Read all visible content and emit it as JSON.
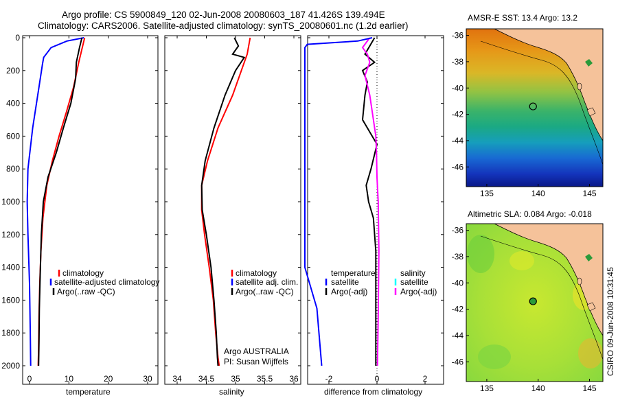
{
  "header": {
    "line1": "Argo profile: CS 5900849_120 02-Jun-2008 20080603_187 41.426S 139.494E",
    "line2": "Climatology: CARS2006. Satellite-adjusted climatology: synTS_20080601.nc (1.2d earlier)"
  },
  "side_stamp": "CSIRO 09-Jun-2008 10:31:45",
  "colors": {
    "climatology": "#ff0000",
    "satellite": "#0000ff",
    "argo": "#000000",
    "salinity_satellite": "#00ffff",
    "salinity_argo_adj": "#ff00ff",
    "land": "#f5c29a"
  },
  "chart_data": [
    {
      "type": "line",
      "xlabel": "temperature",
      "ylabel": "",
      "xlim": [
        -2,
        31
      ],
      "ylim": [
        2050,
        0
      ],
      "xticks": [
        0,
        10,
        20,
        30
      ],
      "yticks": [
        0,
        200,
        400,
        600,
        800,
        1000,
        1200,
        1400,
        1600,
        1800,
        2000
      ],
      "legend": [
        "climatology",
        "satellite-adjusted climatology",
        "Argo(..raw -QC)"
      ],
      "legend_position": "lower-right",
      "series": [
        {
          "name": "climatology",
          "color": "#ff0000",
          "x": [
            14,
            13.5,
            12.5,
            11.2,
            9.4,
            7.5,
            5.8,
            4.4,
            3.4,
            2.9,
            2.6,
            2.4,
            2.3,
            2.2
          ],
          "y": [
            0,
            50,
            150,
            300,
            450,
            600,
            750,
            900,
            1100,
            1300,
            1500,
            1700,
            1900,
            2000
          ]
        },
        {
          "name": "satellite-adjusted climatology",
          "color": "#0000ff",
          "x": [
            13.8,
            9.5,
            5.5,
            3.6,
            3.3,
            2.4,
            0.8,
            -0.4,
            -0.6,
            -0.4,
            0,
            0.2,
            0.3
          ],
          "y": [
            0,
            20,
            60,
            120,
            160,
            300,
            550,
            800,
            1000,
            1200,
            1500,
            1800,
            2000
          ]
        },
        {
          "name": "Argo(..raw -QC)",
          "color": "#000000",
          "x": [
            13.3,
            12.7,
            11.9,
            11.7,
            10.5,
            8.6,
            6.8,
            4.7,
            3.5,
            3.0,
            2.7,
            2.5,
            2.4,
            2.3
          ],
          "y": [
            0,
            60,
            150,
            250,
            400,
            550,
            700,
            850,
            1000,
            1200,
            1450,
            1650,
            1850,
            2000
          ]
        }
      ]
    },
    {
      "type": "line",
      "xlabel": "salinity",
      "ylabel": "",
      "xlim": [
        33.8,
        36.1
      ],
      "ylim": [
        2050,
        0
      ],
      "xticks": [
        34,
        34.5,
        35,
        35.5,
        36
      ],
      "xticklabels": [
        "34",
        "34.5",
        "35",
        "35.5",
        "36"
      ],
      "legend": [
        "climatology",
        "satellite adj. clim.",
        "Argo(..raw -QC)"
      ],
      "legend_position": "lower-right",
      "annotation": [
        "Argo AUSTRALIA",
        "PI: Susan Wijffels"
      ],
      "series": [
        {
          "name": "climatology",
          "color": "#ff0000",
          "x": [
            35.25,
            35.2,
            35.1,
            34.95,
            34.7,
            34.52,
            34.42,
            34.42,
            34.47,
            34.55,
            34.62,
            34.66,
            34.7,
            34.72
          ],
          "y": [
            0,
            100,
            200,
            350,
            550,
            750,
            900,
            1050,
            1200,
            1400,
            1600,
            1800,
            1950,
            2000
          ]
        },
        {
          "name": "Argo(..raw -QC)",
          "color": "#000000",
          "x": [
            34.98,
            35.05,
            34.95,
            35.15,
            35.0,
            34.82,
            34.63,
            34.48,
            34.42,
            34.43,
            34.5,
            34.58,
            34.63,
            34.67,
            34.69,
            34.7
          ],
          "y": [
            0,
            50,
            100,
            120,
            200,
            350,
            550,
            750,
            900,
            1050,
            1200,
            1400,
            1600,
            1800,
            1950,
            2000
          ]
        }
      ]
    },
    {
      "type": "line",
      "xlabel": "difference from climatology",
      "ylabel": "",
      "xlim": [
        -3,
        3
      ],
      "ylim": [
        2050,
        0
      ],
      "xticks": [
        -2,
        0,
        2
      ],
      "zero_line": "dotted",
      "legend": [
        "temperature",
        "satellite",
        "Argo(-adj)",
        "salinity",
        "satellite",
        "Argo(-adj)"
      ],
      "legend_position": "lower",
      "series": [
        {
          "name": "temperature Argo(-adj)",
          "color": "#000000",
          "x": [
            -0.1,
            -0.3,
            -0.5,
            -0.1,
            -0.6,
            -0.4,
            -0.5,
            -0.6,
            -0.2,
            0,
            -0.25,
            -0.45,
            -0.35,
            -0.15,
            -0.05,
            -0.05,
            -0.05
          ],
          "y": [
            0,
            50,
            100,
            150,
            200,
            270,
            350,
            500,
            600,
            650,
            800,
            900,
            1000,
            1100,
            1300,
            1600,
            2000
          ]
        },
        {
          "name": "salinity Argo(-adj)",
          "color": "#ff00ff",
          "x": [
            -0.3,
            -0.6,
            -0.4,
            -0.3,
            -0.5,
            -0.3,
            -0.15,
            -0.05,
            -0.02,
            0,
            0.05,
            0.08,
            0.05,
            0.02
          ],
          "y": [
            0,
            60,
            100,
            150,
            230,
            350,
            500,
            600,
            700,
            850,
            1000,
            1300,
            1700,
            2000
          ]
        },
        {
          "name": "temperature satellite",
          "color": "#0000ff",
          "x": [
            -0.2,
            -0.8,
            -2.9,
            -3,
            -3,
            -2.5,
            -2.3
          ],
          "y": [
            0,
            20,
            40,
            60,
            1400,
            1650,
            2000
          ]
        }
      ]
    },
    {
      "type": "heatmap",
      "title": "AMSR-E SST: 13.4  Argo: 13.2",
      "xlim": [
        133,
        146.3
      ],
      "ylim": [
        -47.5,
        -35.5
      ],
      "xticks": [
        135,
        140,
        145
      ],
      "yticks": [
        -36,
        -38,
        -40,
        -42,
        -44,
        -46
      ],
      "marker": {
        "lon": 139.5,
        "lat": -41.4
      }
    },
    {
      "type": "heatmap",
      "title": "Altimetric SLA: 0.084  Argo: -0.018",
      "xlim": [
        133,
        146.3
      ],
      "ylim": [
        -47.5,
        -35.5
      ],
      "xticks": [
        135,
        140,
        145
      ],
      "yticks": [
        -36,
        -38,
        -40,
        -42,
        -44,
        -46
      ],
      "marker": {
        "lon": 139.5,
        "lat": -41.4
      }
    }
  ]
}
